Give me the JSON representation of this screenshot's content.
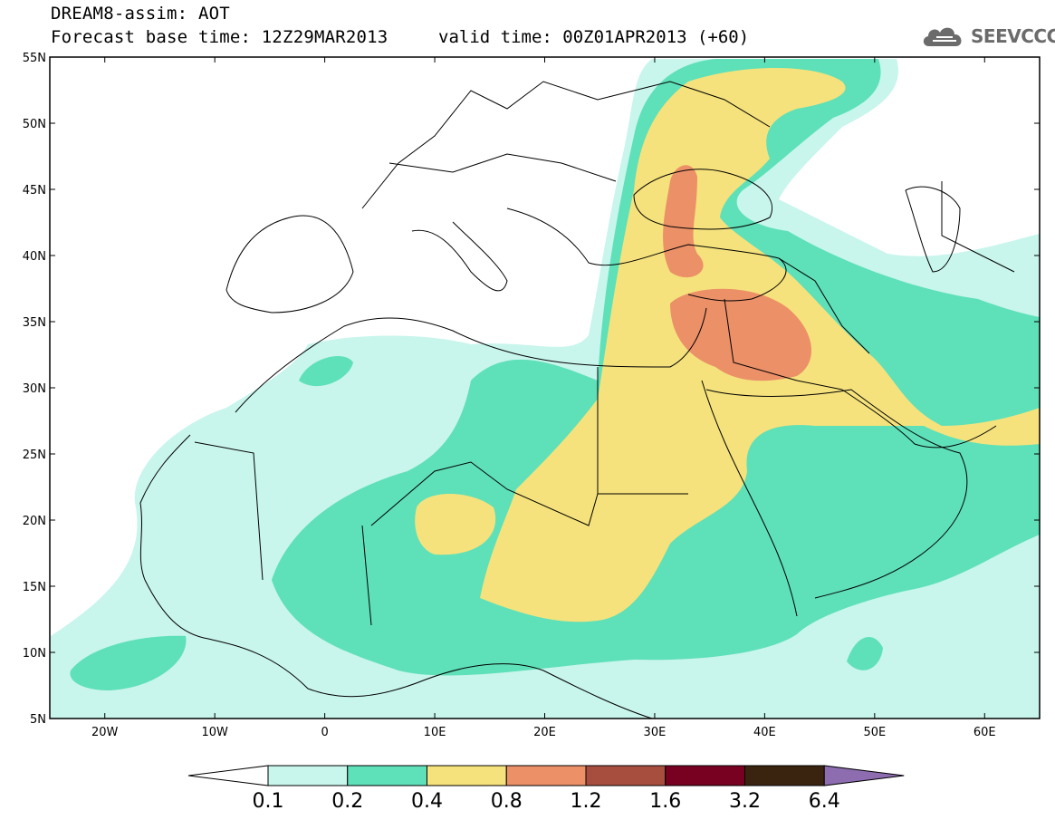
{
  "title": {
    "line1": "DREAM8-assim: AOT",
    "line2": "Forecast base time: 12Z29MAR2013",
    "valid": "valid time: 00Z01APR2013 (+60)"
  },
  "logo": {
    "text": "SEEVCCC",
    "icon": "cloud-icon",
    "color": "#6b6b6b"
  },
  "map": {
    "lon_range": [
      -25,
      65
    ],
    "lat_range": [
      5,
      55
    ],
    "lat_ticks": [
      "5N",
      "10N",
      "15N",
      "20N",
      "25N",
      "30N",
      "35N",
      "40N",
      "45N",
      "50N",
      "55N"
    ],
    "lon_ticks": [
      "20W",
      "10W",
      "0",
      "10E",
      "20E",
      "30E",
      "40E",
      "50E",
      "60E"
    ]
  },
  "colorbar": {
    "levels": [
      "0.1",
      "0.2",
      "0.4",
      "0.8",
      "1.2",
      "1.6",
      "3.2",
      "6.4"
    ],
    "colors": [
      "#c8f5ec",
      "#5ee0b8",
      "#f5e27c",
      "#ec9068",
      "#a84e3e",
      "#780020",
      "#3a2410",
      "#8e6cb0"
    ]
  }
}
